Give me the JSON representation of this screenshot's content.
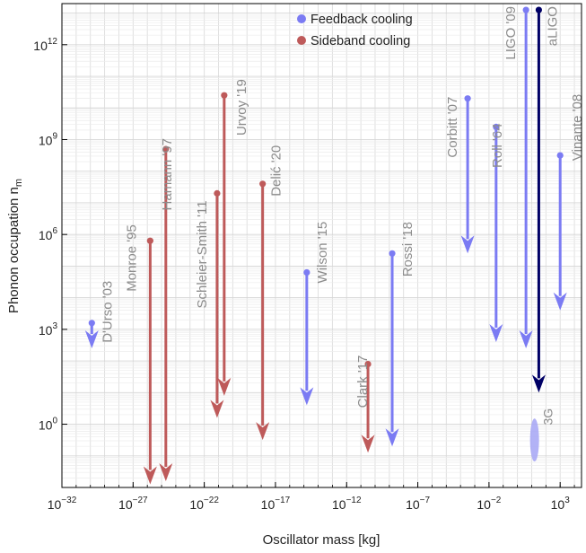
{
  "chart_data": {
    "type": "scatter",
    "title": "",
    "xlabel": "Oscillator mass [kg]",
    "ylabel_main": "Phonon occupation n",
    "ylabel_sub": "m",
    "x_scale": "log",
    "y_scale": "log",
    "xlim_exponent": [
      -32,
      4.5
    ],
    "ylim_exponent": [
      -2,
      13.3
    ],
    "grid": true,
    "x_ticks": [
      {
        "base": "10",
        "exp": "−32",
        "log": -32
      },
      {
        "base": "10",
        "exp": "−27",
        "log": -27
      },
      {
        "base": "10",
        "exp": "−22",
        "log": -22
      },
      {
        "base": "10",
        "exp": "−17",
        "log": -17
      },
      {
        "base": "10",
        "exp": "−12",
        "log": -12
      },
      {
        "base": "10",
        "exp": "−7",
        "log": -7
      },
      {
        "base": "10",
        "exp": "−2",
        "log": -2
      },
      {
        "base": "10",
        "exp": "3",
        "log": 3
      }
    ],
    "y_ticks": [
      {
        "base": "10",
        "exp": "0",
        "log": 0
      },
      {
        "base": "10",
        "exp": "3",
        "log": 3
      },
      {
        "base": "10",
        "exp": "6",
        "log": 6
      },
      {
        "base": "10",
        "exp": "9",
        "log": 9
      },
      {
        "base": "10",
        "exp": "12",
        "log": 12
      }
    ],
    "legend": {
      "placement": "top-center",
      "entries": [
        {
          "label": "Feedback cooling",
          "color": "#7b7bf3"
        },
        {
          "label": "Sideband cooling",
          "color": "#be5a5a"
        }
      ]
    },
    "series": [
      {
        "name": "Feedback cooling",
        "color": "#7b7bf3"
      },
      {
        "name": "Sideband cooling",
        "color": "#be5a5a"
      }
    ],
    "points": [
      {
        "label": "D'Urso '03",
        "series": 0,
        "log_mass": -29.9,
        "log_n_start": 3.2,
        "log_n_end": 2.4,
        "color": "#7b7bf3"
      },
      {
        "label": "Monroe '95",
        "series": 1,
        "log_mass": -25.8,
        "log_n_start": 5.8,
        "log_n_end": -1.9,
        "color": "#be5a5a"
      },
      {
        "label": "Hamann '97",
        "series": 1,
        "log_mass": -24.7,
        "log_n_start": 8.7,
        "log_n_end": -1.8,
        "color": "#be5a5a"
      },
      {
        "label": "Schleier-Smith '11",
        "series": 1,
        "log_mass": -21.1,
        "log_n_start": 7.3,
        "log_n_end": 0.2,
        "color": "#be5a5a"
      },
      {
        "label": "Urvoy '19",
        "series": 1,
        "log_mass": -20.6,
        "log_n_start": 10.4,
        "log_n_end": 0.9,
        "color": "#be5a5a"
      },
      {
        "label": "Delić '20",
        "series": 1,
        "log_mass": -17.9,
        "log_n_start": 7.6,
        "log_n_end": -0.5,
        "color": "#be5a5a"
      },
      {
        "label": "Wilson '15",
        "series": 0,
        "log_mass": -14.8,
        "log_n_start": 4.8,
        "log_n_end": 0.6,
        "color": "#7b7bf3"
      },
      {
        "label": "Clark '17",
        "series": 1,
        "log_mass": -10.5,
        "log_n_start": 1.9,
        "log_n_end": -0.9,
        "color": "#be5a5a"
      },
      {
        "label": "Rossi '18",
        "series": 0,
        "log_mass": -8.8,
        "log_n_start": 5.4,
        "log_n_end": -0.7,
        "color": "#7b7bf3"
      },
      {
        "label": "Corbitt '07",
        "series": 0,
        "log_mass": -3.5,
        "log_n_start": 10.3,
        "log_n_end": 5.4,
        "color": "#7b7bf3"
      },
      {
        "label": "Roll '64",
        "series": 0,
        "log_mass": -1.5,
        "log_n_start": 9.4,
        "log_n_end": 2.6,
        "color": "#7b7bf3"
      },
      {
        "label": "LIGO '09",
        "series": 0,
        "log_mass": 0.6,
        "log_n_start": 13.1,
        "log_n_end": 2.4,
        "color": "#7b7bf3"
      },
      {
        "label": "aLIGO",
        "series": 0,
        "log_mass": 1.5,
        "log_n_start": 13.1,
        "log_n_end": 1.0,
        "color": "#000066"
      },
      {
        "label": "Vinante '08",
        "series": 0,
        "log_mass": 3.0,
        "log_n_start": 8.5,
        "log_n_end": 3.6,
        "color": "#7b7bf3"
      }
    ],
    "regions": [
      {
        "label": "3G",
        "log_mass": 1.2,
        "log_n_center": -0.5,
        "color": "#aaaaf5"
      }
    ]
  }
}
